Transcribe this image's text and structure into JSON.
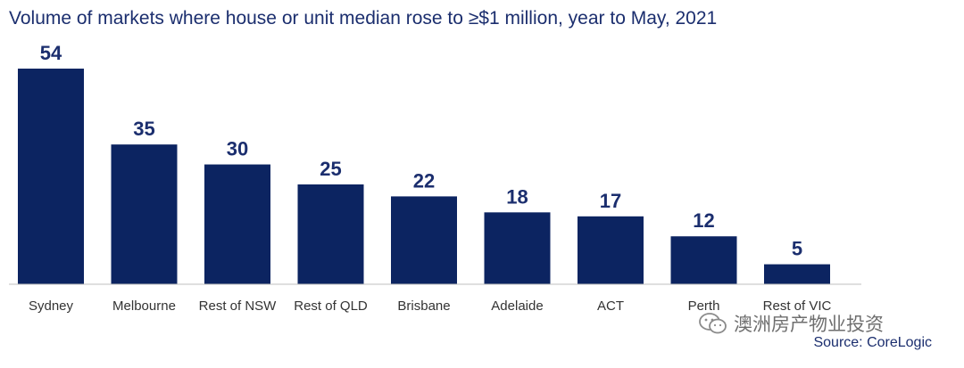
{
  "chart_data": {
    "type": "bar",
    "title": "Volume of markets where house or unit median rose to ≥$1 million, year to May, 2021",
    "categories": [
      "Sydney",
      "Melbourne",
      "Rest of NSW",
      "Rest of QLD",
      "Brisbane",
      "Adelaide",
      "ACT",
      "Perth",
      "Rest of VIC"
    ],
    "values": [
      54,
      35,
      30,
      25,
      22,
      18,
      17,
      12,
      5
    ],
    "data_labels": [
      "54",
      "35",
      "30",
      "25",
      "22",
      "18",
      "17",
      "12",
      "5"
    ],
    "xlabel": "",
    "ylabel": "",
    "ylim": [
      0,
      54
    ],
    "grid": false,
    "legend": "none",
    "bar_color": "#0c2461",
    "label_color": "#1b2e6e",
    "axis_color": "#bfbfbf"
  },
  "source": "Source: CoreLogic",
  "watermark": {
    "icon": "wechat-icon",
    "text": "澳洲房产物业投资"
  }
}
